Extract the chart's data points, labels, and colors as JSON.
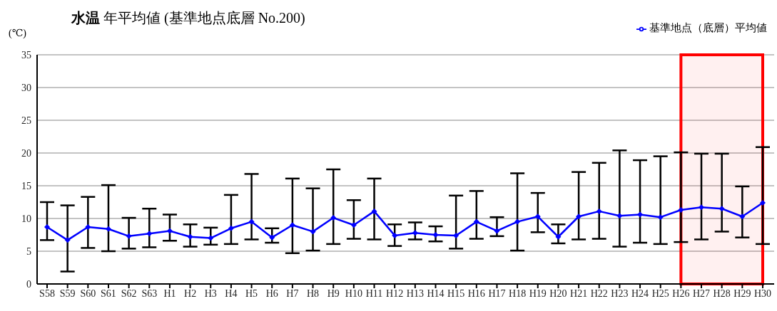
{
  "chart_data": {
    "type": "line",
    "title": "水温 年平均値 (基準地点底層 No.200)",
    "ylabel": "(℃)",
    "categories": [
      "S58",
      "S59",
      "S60",
      "S61",
      "S62",
      "S63",
      "H1",
      "H2",
      "H3",
      "H4",
      "H5",
      "H6",
      "H7",
      "H8",
      "H9",
      "H10",
      "H11",
      "H12",
      "H13",
      "H14",
      "H15",
      "H16",
      "H17",
      "H18",
      "H19",
      "H20",
      "H21",
      "H22",
      "H23",
      "H24",
      "H25",
      "H26",
      "H27",
      "H28",
      "H29",
      "H30"
    ],
    "series": [
      {
        "name": "基準地点（底層）平均値",
        "color": "#0000ff",
        "values": [
          8.7,
          6.7,
          8.7,
          8.4,
          7.3,
          7.7,
          8.1,
          7.2,
          7.0,
          8.5,
          9.5,
          7.1,
          9.0,
          8.0,
          10.1,
          9.0,
          11.1,
          7.4,
          7.8,
          7.5,
          7.4,
          9.5,
          8.1,
          9.5,
          10.3,
          7.2,
          10.3,
          11.1,
          10.4,
          10.6,
          10.2,
          11.3,
          11.7,
          11.5,
          10.3,
          12.4
        ],
        "errors": [
          [
            6.7,
            12.5
          ],
          [
            1.9,
            12.0
          ],
          [
            5.5,
            13.3
          ],
          [
            5.0,
            15.1
          ],
          [
            5.4,
            10.1
          ],
          [
            5.6,
            11.5
          ],
          [
            6.6,
            10.6
          ],
          [
            5.7,
            9.1
          ],
          [
            6.0,
            8.6
          ],
          [
            6.1,
            13.6
          ],
          [
            6.8,
            16.8
          ],
          [
            6.3,
            8.5
          ],
          [
            4.7,
            16.1
          ],
          [
            5.1,
            14.6
          ],
          [
            6.1,
            17.5
          ],
          [
            6.9,
            12.8
          ],
          [
            6.8,
            16.1
          ],
          [
            5.8,
            9.1
          ],
          [
            6.8,
            9.4
          ],
          [
            6.5,
            8.8
          ],
          [
            5.4,
            13.5
          ],
          [
            6.9,
            14.2
          ],
          [
            7.3,
            10.2
          ],
          [
            5.1,
            16.9
          ],
          [
            7.9,
            13.9
          ],
          [
            6.2,
            9.1
          ],
          [
            6.8,
            17.1
          ],
          [
            6.9,
            18.5
          ],
          [
            5.7,
            20.4
          ],
          [
            6.3,
            18.9
          ],
          [
            6.1,
            19.5
          ],
          [
            6.4,
            20.1
          ],
          [
            6.8,
            19.9
          ],
          [
            8.0,
            19.9
          ],
          [
            7.1,
            14.9
          ],
          [
            6.1,
            20.9
          ]
        ]
      }
    ],
    "ylim": [
      0,
      35
    ],
    "yticks": [
      0,
      5,
      10,
      15,
      20,
      25,
      30,
      35
    ],
    "grid": "y",
    "legend": "top right",
    "marker": "diamond",
    "line_style": "solid",
    "bands": [
      {
        "axis": "x",
        "from": "H26",
        "to": "H30",
        "color": "#ff0000"
      }
    ]
  }
}
